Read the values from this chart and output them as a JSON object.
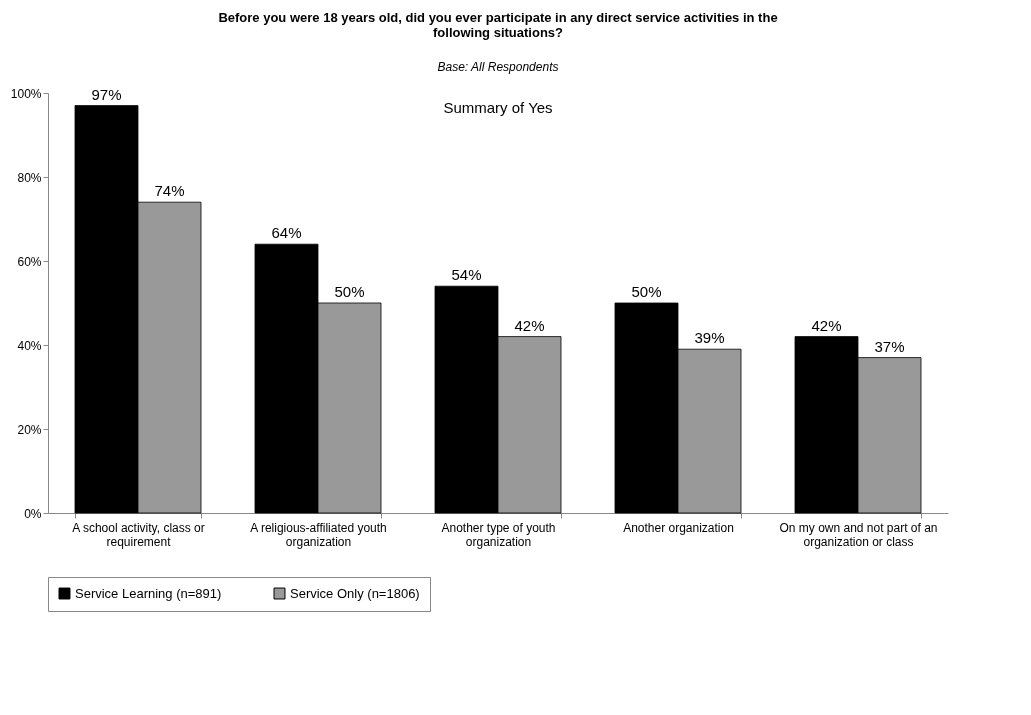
{
  "chart_data": {
    "type": "bar",
    "title": "Before you were 18 years old, did you ever participate in any direct service activities in the following situations?",
    "subtitle": "Base: All Respondents",
    "annotations": [
      "Summary of Yes"
    ],
    "categories": [
      "A school activity, class or requirement",
      "A religious-affiliated youth organization",
      "Another type of youth organization",
      "Another organization",
      "On my own and not part of an organization or class"
    ],
    "series": [
      {
        "name": "Service Learning (n=891)",
        "color": "#000000",
        "values": [
          97,
          64,
          54,
          50,
          42
        ],
        "value_labels": [
          "97%",
          "64%",
          "54%",
          "50%",
          "42%"
        ]
      },
      {
        "name": "Service Only (n=1806)",
        "color": "#999999",
        "values": [
          74,
          50,
          42,
          39,
          37
        ],
        "value_labels": [
          "74%",
          "50%",
          "42%",
          "39%",
          "37%"
        ]
      }
    ],
    "ylim": [
      0,
      100
    ],
    "yticks": [
      {
        "value": 0,
        "label": "0%"
      },
      {
        "value": 20,
        "label": "20%"
      },
      {
        "value": 40,
        "label": "40%"
      },
      {
        "value": 60,
        "label": "60%"
      },
      {
        "value": 80,
        "label": "80%"
      },
      {
        "value": 100,
        "label": "100%"
      }
    ],
    "grid": false,
    "legend": "bottom"
  }
}
